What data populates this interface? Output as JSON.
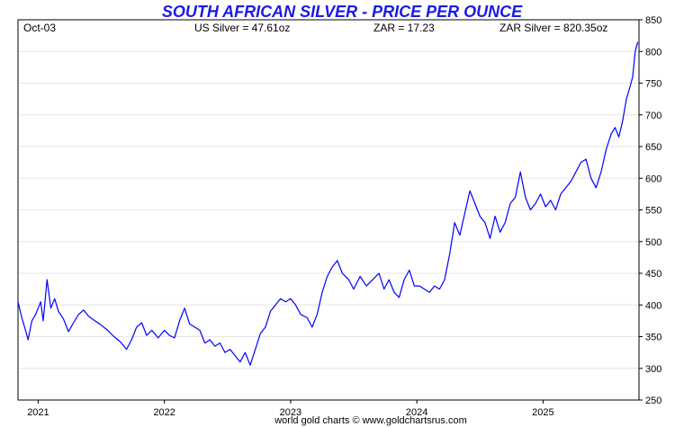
{
  "chart_data": {
    "type": "line",
    "title": "SOUTH AFRICAN SILVER - PRICE PER OUNCE",
    "header": {
      "date": "Oct-03",
      "us_silver": "US Silver = 47.61oz",
      "zar": "ZAR = 17.23",
      "zar_silver": "ZAR Silver = 820.35oz"
    },
    "footer": "world gold charts © www.goldchartsrus.com",
    "x_tick_labels": [
      "2021",
      "2022",
      "2023",
      "2024",
      "2025"
    ],
    "x_tick_values": [
      2021.0,
      2022.0,
      2023.0,
      2024.0,
      2025.0
    ],
    "xlim": [
      2020.84,
      2025.76
    ],
    "ylim": [
      250,
      850
    ],
    "y_tick_labels": [
      "250",
      "300",
      "350",
      "400",
      "450",
      "500",
      "550",
      "600",
      "650",
      "700",
      "750",
      "800",
      "850"
    ],
    "y_tick_values": [
      250,
      300,
      350,
      400,
      450,
      500,
      550,
      600,
      650,
      700,
      750,
      800,
      850
    ],
    "grid": true,
    "series": [
      {
        "color": "#0000ff",
        "points": [
          [
            2020.84,
            405
          ],
          [
            2020.87,
            380
          ],
          [
            2020.9,
            360
          ],
          [
            2020.92,
            345
          ],
          [
            2020.95,
            375
          ],
          [
            2020.98,
            385
          ],
          [
            2021.02,
            405
          ],
          [
            2021.04,
            375
          ],
          [
            2021.07,
            440
          ],
          [
            2021.1,
            395
          ],
          [
            2021.13,
            410
          ],
          [
            2021.16,
            390
          ],
          [
            2021.2,
            378
          ],
          [
            2021.24,
            358
          ],
          [
            2021.28,
            372
          ],
          [
            2021.32,
            385
          ],
          [
            2021.36,
            392
          ],
          [
            2021.4,
            382
          ],
          [
            2021.45,
            375
          ],
          [
            2021.5,
            368
          ],
          [
            2021.55,
            360
          ],
          [
            2021.6,
            350
          ],
          [
            2021.65,
            342
          ],
          [
            2021.7,
            330
          ],
          [
            2021.74,
            345
          ],
          [
            2021.78,
            365
          ],
          [
            2021.82,
            372
          ],
          [
            2021.86,
            352
          ],
          [
            2021.9,
            360
          ],
          [
            2021.95,
            348
          ],
          [
            2022.0,
            360
          ],
          [
            2022.04,
            352
          ],
          [
            2022.08,
            348
          ],
          [
            2022.12,
            375
          ],
          [
            2022.16,
            395
          ],
          [
            2022.2,
            370
          ],
          [
            2022.24,
            365
          ],
          [
            2022.28,
            360
          ],
          [
            2022.32,
            340
          ],
          [
            2022.36,
            345
          ],
          [
            2022.4,
            335
          ],
          [
            2022.44,
            340
          ],
          [
            2022.48,
            325
          ],
          [
            2022.52,
            330
          ],
          [
            2022.56,
            320
          ],
          [
            2022.6,
            310
          ],
          [
            2022.64,
            325
          ],
          [
            2022.68,
            305
          ],
          [
            2022.72,
            330
          ],
          [
            2022.76,
            355
          ],
          [
            2022.8,
            365
          ],
          [
            2022.84,
            390
          ],
          [
            2022.88,
            400
          ],
          [
            2022.92,
            410
          ],
          [
            2022.96,
            405
          ],
          [
            2023.0,
            410
          ],
          [
            2023.04,
            400
          ],
          [
            2023.08,
            385
          ],
          [
            2023.13,
            380
          ],
          [
            2023.17,
            365
          ],
          [
            2023.21,
            385
          ],
          [
            2023.25,
            420
          ],
          [
            2023.29,
            445
          ],
          [
            2023.33,
            460
          ],
          [
            2023.37,
            470
          ],
          [
            2023.41,
            450
          ],
          [
            2023.46,
            440
          ],
          [
            2023.5,
            425
          ],
          [
            2023.55,
            445
          ],
          [
            2023.6,
            430
          ],
          [
            2023.65,
            440
          ],
          [
            2023.7,
            450
          ],
          [
            2023.74,
            425
          ],
          [
            2023.78,
            440
          ],
          [
            2023.82,
            420
          ],
          [
            2023.86,
            412
          ],
          [
            2023.9,
            440
          ],
          [
            2023.94,
            455
          ],
          [
            2023.98,
            430
          ],
          [
            2024.02,
            430
          ],
          [
            2024.06,
            425
          ],
          [
            2024.1,
            420
          ],
          [
            2024.14,
            430
          ],
          [
            2024.18,
            425
          ],
          [
            2024.22,
            440
          ],
          [
            2024.26,
            480
          ],
          [
            2024.3,
            530
          ],
          [
            2024.34,
            510
          ],
          [
            2024.38,
            545
          ],
          [
            2024.42,
            580
          ],
          [
            2024.46,
            560
          ],
          [
            2024.5,
            540
          ],
          [
            2024.54,
            530
          ],
          [
            2024.58,
            505
          ],
          [
            2024.62,
            540
          ],
          [
            2024.66,
            515
          ],
          [
            2024.7,
            530
          ],
          [
            2024.74,
            560
          ],
          [
            2024.78,
            570
          ],
          [
            2024.82,
            610
          ],
          [
            2024.86,
            570
          ],
          [
            2024.9,
            550
          ],
          [
            2024.94,
            560
          ],
          [
            2024.98,
            575
          ],
          [
            2025.02,
            555
          ],
          [
            2025.06,
            565
          ],
          [
            2025.1,
            550
          ],
          [
            2025.14,
            575
          ],
          [
            2025.18,
            585
          ],
          [
            2025.22,
            595
          ],
          [
            2025.26,
            610
          ],
          [
            2025.3,
            625
          ],
          [
            2025.34,
            630
          ],
          [
            2025.38,
            600
          ],
          [
            2025.42,
            585
          ],
          [
            2025.46,
            610
          ],
          [
            2025.5,
            645
          ],
          [
            2025.54,
            670
          ],
          [
            2025.57,
            680
          ],
          [
            2025.6,
            665
          ],
          [
            2025.63,
            690
          ],
          [
            2025.66,
            725
          ],
          [
            2025.69,
            745
          ],
          [
            2025.71,
            760
          ],
          [
            2025.73,
            800
          ],
          [
            2025.75,
            815
          ]
        ]
      }
    ]
  }
}
